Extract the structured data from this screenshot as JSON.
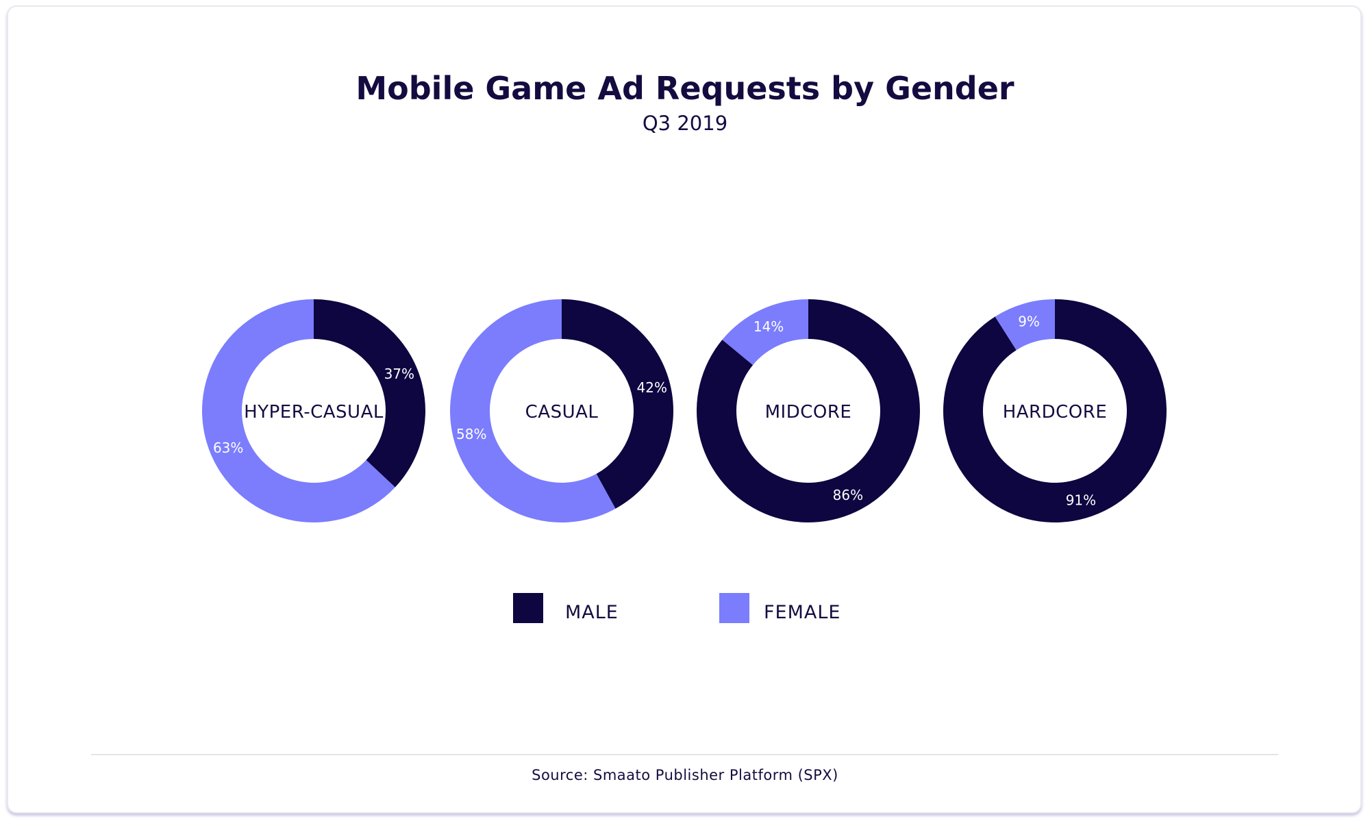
{
  "chart_data": {
    "type": "pie",
    "subtype": "donut",
    "title": "Mobile Game Ad Requests by Gender",
    "subtitle": "Q3 2019",
    "series_names": [
      "MALE",
      "FEMALE"
    ],
    "colors": {
      "male": "#0d0640",
      "female": "#7b7dfd",
      "text": "#140c40"
    },
    "donuts": [
      {
        "category": "HYPER-CASUAL",
        "male": 37,
        "female": 63,
        "male_label": "37%",
        "female_label": "63%"
      },
      {
        "category": "CASUAL",
        "male": 42,
        "female": 58,
        "male_label": "42%",
        "female_label": "58%"
      },
      {
        "category": "MIDCORE",
        "male": 86,
        "female": 14,
        "male_label": "86%",
        "female_label": "14%"
      },
      {
        "category": "HARDCORE",
        "male": 91,
        "female": 9,
        "male_label": "91%",
        "female_label": "9%"
      }
    ],
    "legend": [
      {
        "label": "MALE",
        "color": "#0d0640"
      },
      {
        "label": "FEMALE",
        "color": "#7b7dfd"
      }
    ],
    "source": "Source: Smaato Publisher Platform (SPX)"
  }
}
